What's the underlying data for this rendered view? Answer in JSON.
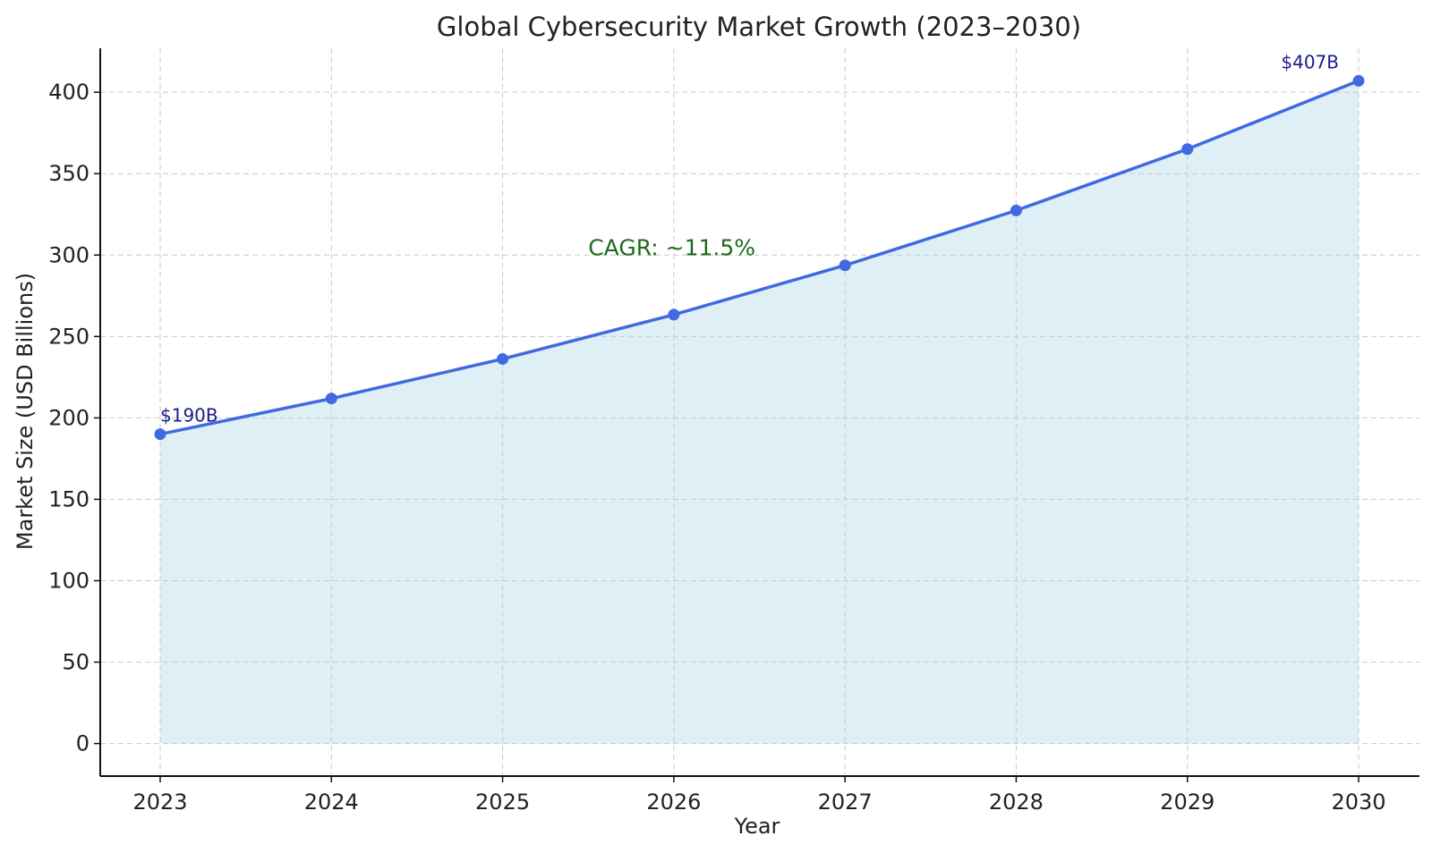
{
  "chart_data": {
    "type": "area",
    "title": "Global Cybersecurity Market Growth (2023–2030)",
    "xlabel": "Year",
    "ylabel": "Market Size (USD Billions)",
    "categories": [
      "2023",
      "2024",
      "2025",
      "2026",
      "2027",
      "2028",
      "2029",
      "2030"
    ],
    "series": [
      {
        "values": [
          190,
          211.9,
          236.2,
          263.4,
          293.7,
          327.4,
          365.1,
          407
        ]
      }
    ],
    "ylim": [
      -20,
      427
    ],
    "yticks": [
      0,
      50,
      100,
      150,
      200,
      250,
      300,
      350,
      400
    ],
    "grid": true,
    "legend": "none",
    "data_labels": [
      {
        "category": "2023",
        "text": "$190B"
      },
      {
        "category": "2030",
        "text": "$407B"
      }
    ],
    "annotation": {
      "text": "CAGR: ~11.5%",
      "x": 2025.5,
      "y": 300
    },
    "colors": {
      "line": "#4169e1",
      "fill": "#add8e6",
      "data_label": "#1a1a8c",
      "annotation": "#1e6b1e"
    }
  }
}
